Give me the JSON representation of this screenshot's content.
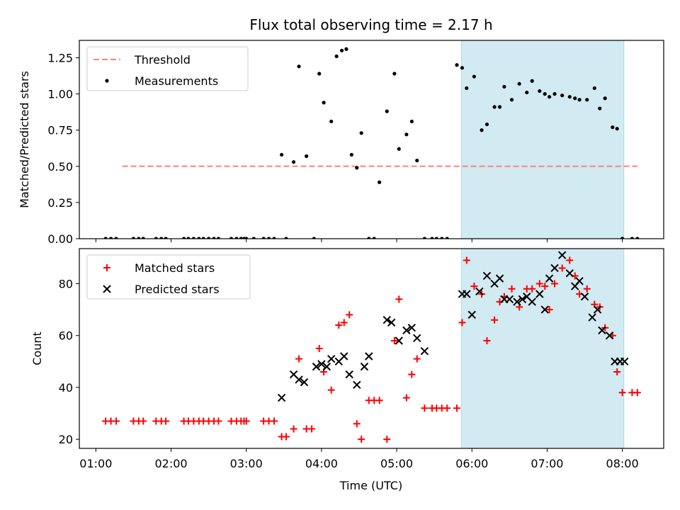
{
  "chart_data": {
    "title": "Flux total observing time = 2.17 h",
    "xlabel": "Time (UTC)",
    "x_ticks": [
      1,
      2,
      3,
      4,
      5,
      6,
      7,
      8
    ],
    "x_tick_labels": [
      "01:00",
      "02:00",
      "03:00",
      "04:00",
      "05:00",
      "06:00",
      "07:00",
      "08:00"
    ],
    "xlim": [
      0.78,
      8.55
    ],
    "shaded_interval": {
      "x": [
        5.86,
        8.02
      ],
      "color": "#add8e6"
    },
    "panels": [
      {
        "type": "scatter",
        "ylabel": "Matched/Predicted stars",
        "ylim": [
          0,
          1.37
        ],
        "y_ticks": [
          0,
          0.25,
          0.5,
          0.75,
          1.0,
          1.25
        ],
        "y_tick_labels": [
          "0.00",
          "0.25",
          "0.50",
          "0.75",
          "1.00",
          "1.25"
        ],
        "legend": {
          "position": "top-left",
          "entries": [
            "Threshold",
            "Measurements"
          ]
        },
        "threshold": {
          "name": "Threshold",
          "x": [
            1.35,
            8.2
          ],
          "y": 0.5,
          "color": "#ff8080",
          "style": "dashed"
        },
        "series": [
          {
            "name": "Measurements",
            "marker": "dot",
            "color": "#000000",
            "x": [
              1.13,
              1.2,
              1.27,
              1.5,
              1.57,
              1.63,
              1.8,
              1.87,
              1.93,
              2.17,
              2.23,
              2.3,
              2.37,
              2.43,
              2.5,
              2.57,
              2.63,
              2.8,
              2.87,
              2.93,
              2.97,
              3.0,
              3.1,
              3.23,
              3.3,
              3.37,
              3.47,
              3.53,
              3.63,
              3.7,
              3.8,
              3.9,
              3.97,
              4.03,
              4.13,
              4.2,
              4.27,
              4.33,
              4.4,
              4.47,
              4.53,
              4.63,
              4.7,
              4.77,
              4.87,
              4.97,
              5.03,
              5.13,
              5.2,
              5.27,
              5.37,
              5.47,
              5.53,
              5.6,
              5.67,
              5.8,
              5.87,
              5.93,
              6.03,
              6.13,
              6.2,
              6.3,
              6.37,
              6.43,
              6.53,
              6.63,
              6.73,
              6.8,
              6.9,
              6.97,
              7.03,
              7.1,
              7.2,
              7.3,
              7.37,
              7.43,
              7.53,
              7.63,
              7.7,
              7.77,
              7.87,
              7.93,
              8.0,
              8.13,
              8.2
            ],
            "y": [
              0,
              0,
              0,
              0,
              0,
              0,
              0,
              0,
              0,
              0,
              0,
              0,
              0,
              0,
              0,
              0,
              0,
              0,
              0,
              0,
              0,
              0,
              0,
              0,
              0,
              0,
              0.58,
              0,
              0.53,
              1.19,
              0.57,
              0,
              1.14,
              0.94,
              0.81,
              1.26,
              1.3,
              1.31,
              0.58,
              0.49,
              0.73,
              0,
              0,
              0.39,
              0.88,
              1.14,
              0.62,
              0.72,
              0.81,
              0.54,
              0,
              0,
              0,
              0,
              0,
              1.2,
              1.18,
              1.04,
              1.12,
              0.75,
              0.79,
              0.91,
              0.91,
              1.05,
              0.96,
              1.07,
              1.01,
              1.09,
              1.02,
              1.0,
              0.98,
              1.0,
              0.99,
              0.98,
              0.97,
              0.96,
              0.96,
              1.04,
              0.9,
              0.97,
              0.77,
              0.76,
              0,
              0,
              0
            ]
          }
        ]
      },
      {
        "type": "scatter",
        "ylabel": "Count",
        "ylim": [
          16.5,
          93.5
        ],
        "y_ticks": [
          20,
          40,
          60,
          80
        ],
        "y_tick_labels": [
          "20",
          "40",
          "60",
          "80"
        ],
        "legend": {
          "position": "top-left",
          "entries": [
            "Matched stars",
            "Predicted stars"
          ]
        },
        "series": [
          {
            "name": "Matched stars",
            "marker": "plus",
            "color": "#ff0000",
            "x": [
              1.13,
              1.2,
              1.27,
              1.5,
              1.57,
              1.63,
              1.8,
              1.87,
              1.93,
              2.17,
              2.23,
              2.3,
              2.37,
              2.43,
              2.5,
              2.57,
              2.63,
              2.8,
              2.87,
              2.93,
              2.97,
              3.0,
              3.23,
              3.3,
              3.37,
              3.47,
              3.53,
              3.63,
              3.7,
              3.8,
              3.87,
              3.97,
              4.03,
              4.13,
              4.23,
              4.3,
              4.37,
              4.47,
              4.53,
              4.63,
              4.7,
              4.77,
              4.87,
              4.97,
              5.03,
              5.13,
              5.2,
              5.27,
              5.37,
              5.47,
              5.53,
              5.6,
              5.67,
              5.8,
              5.87,
              5.93,
              6.03,
              6.13,
              6.2,
              6.3,
              6.37,
              6.43,
              6.53,
              6.63,
              6.73,
              6.8,
              6.9,
              6.97,
              7.03,
              7.1,
              7.2,
              7.3,
              7.37,
              7.43,
              7.53,
              7.63,
              7.7,
              7.77,
              7.87,
              7.93,
              8.0,
              8.13,
              8.2
            ],
            "y": [
              27,
              27,
              27,
              27,
              27,
              27,
              27,
              27,
              27,
              27,
              27,
              27,
              27,
              27,
              27,
              27,
              27,
              27,
              27,
              27,
              27,
              27,
              27,
              27,
              27,
              21,
              21,
              24,
              51,
              24,
              24,
              55,
              46,
              39,
              64,
              65,
              68,
              26,
              20,
              35,
              35,
              35,
              20,
              58,
              74,
              36,
              45,
              51,
              32,
              32,
              32,
              32,
              32,
              32,
              65,
              89,
              79,
              76,
              58,
              66,
              73,
              75,
              78,
              71,
              78,
              78,
              80,
              79,
              70,
              80,
              86,
              89,
              83,
              76,
              78,
              72,
              71,
              63,
              60,
              46,
              38,
              38,
              38
            ]
          },
          {
            "name": "Predicted stars",
            "marker": "x",
            "color": "#000000",
            "x": [
              3.47,
              3.63,
              3.7,
              3.77,
              3.93,
              4.0,
              4.07,
              4.13,
              4.23,
              4.3,
              4.37,
              4.47,
              4.57,
              4.63,
              4.87,
              4.93,
              5.03,
              5.13,
              5.2,
              5.27,
              5.37,
              5.87,
              5.93,
              6.0,
              6.1,
              6.2,
              6.3,
              6.37,
              6.43,
              6.5,
              6.6,
              6.67,
              6.73,
              6.8,
              6.9,
              6.97,
              7.03,
              7.1,
              7.2,
              7.3,
              7.37,
              7.43,
              7.5,
              7.6,
              7.67,
              7.73,
              7.83,
              7.9,
              7.97,
              8.03
            ],
            "y": [
              36,
              45,
              43,
              42,
              48,
              49,
              48,
              51,
              50,
              52,
              45,
              41,
              48,
              52,
              66,
              65,
              58,
              62,
              63,
              59,
              54,
              76,
              76,
              68,
              77,
              83,
              80,
              82,
              74,
              74,
              73,
              74,
              75,
              73,
              76,
              70,
              82,
              86,
              91,
              84,
              79,
              81,
              75,
              67,
              70,
              62,
              60,
              50,
              50,
              50
            ]
          }
        ]
      }
    ]
  }
}
